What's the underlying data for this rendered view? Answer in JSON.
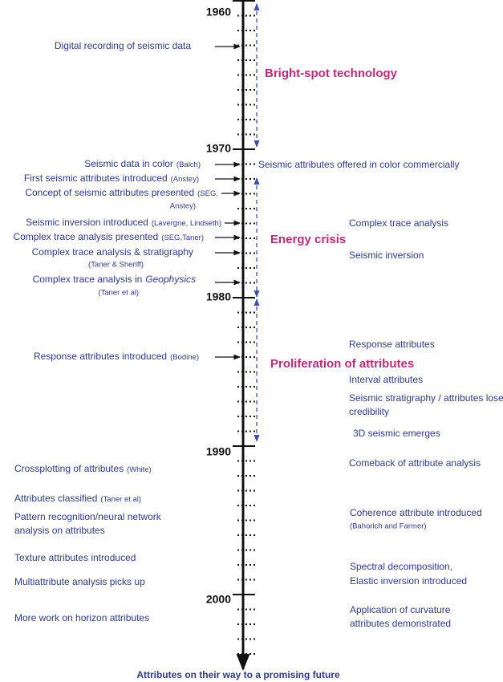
{
  "decades": [
    "1960",
    "1970",
    "1980",
    "1990",
    "2000"
  ],
  "phases": [
    "Bright-spot technology",
    "Energy crisis",
    "Proliferation of attributes"
  ],
  "left_events": [
    {
      "label": "Digital recording of seismic data"
    },
    {
      "label": "Seismic data in color",
      "source": "(Balch)"
    },
    {
      "label": "First seismic attributes introduced",
      "source": "(Anstey)"
    },
    {
      "label": "Concept of seismic attributes presented",
      "source": [
        "(SEG,",
        "Anstey)"
      ]
    },
    {
      "label": "Seismic inversion introduced",
      "source": "(Lavergne, Lindseth)"
    },
    {
      "label": "Complex trace analysis presented",
      "source": "(SEG,Taner)"
    },
    {
      "label": "Complex trace analysis & stratigraphy",
      "source": "(Taner & Sheriff)"
    },
    {
      "label": "Complex trace analysis in",
      "journal": "Geophysics",
      "source": "(Taner et al)"
    },
    {
      "label": "Response attributes introduced",
      "source": "(Bodine)"
    },
    {
      "label": "Crossplotting of attributes",
      "source": "(White)"
    },
    {
      "label": "Attributes classified",
      "source": "(Taner et al)"
    },
    {
      "label": [
        "Pattern recognition/neural network",
        "analysis on attributes"
      ]
    },
    {
      "label": "Texture attributes introduced"
    },
    {
      "label": "Multiattribute analysis picks up"
    },
    {
      "label": "More work on horizon attributes"
    }
  ],
  "right_events": [
    {
      "label": "Seismic attributes offered in color commercially"
    },
    {
      "label": "Complex trace analysis"
    },
    {
      "label": "Seismic inversion"
    },
    {
      "label": "Response attributes"
    },
    {
      "label": "Interval attributes"
    },
    {
      "label": [
        "Seismic stratigraphy / attributes lose",
        "credibility"
      ]
    },
    {
      "label": "3D seismic emerges"
    },
    {
      "label": "Comeback of attribute analysis"
    },
    {
      "label": "Coherence attribute introduced",
      "source": "(Bahorich and Farmer)"
    },
    {
      "label": [
        "Spectral decomposition,",
        "Elastic inversion introduced"
      ]
    },
    {
      "label": [
        "Application of curvature",
        "attributes demonstrated"
      ]
    }
  ],
  "footer": "Attributes on their way to a promising future"
}
